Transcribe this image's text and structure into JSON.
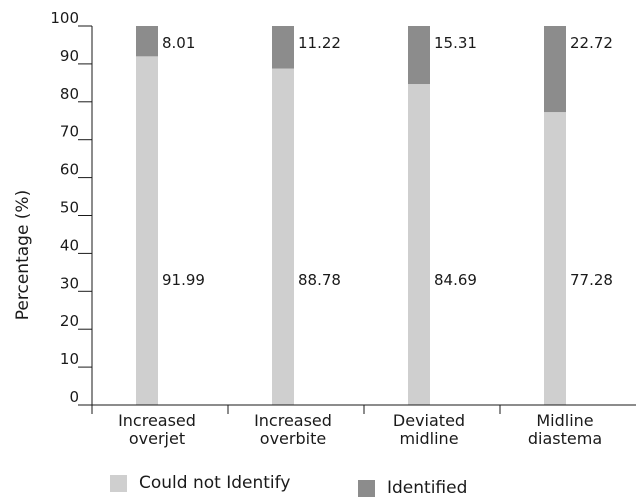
{
  "chart_data": {
    "type": "bar",
    "stacked": true,
    "orientation": "vertical",
    "categories": [
      [
        "Increased",
        "overjet"
      ],
      [
        "Increased",
        "overbite"
      ],
      [
        "Deviated",
        "midline"
      ],
      [
        "Midline",
        "diastema"
      ]
    ],
    "series": [
      {
        "name": "Could not Identify",
        "color": "#cfcfcf",
        "values": [
          91.99,
          88.78,
          84.69,
          77.28
        ]
      },
      {
        "name": "Identified",
        "color": "#8c8c8c",
        "values": [
          8.01,
          11.22,
          15.31,
          22.72
        ]
      }
    ],
    "data_labels": {
      "Could not Identify": [
        "91.99",
        "88.78",
        "84.69",
        "77.28"
      ],
      "Identified": [
        "8.01",
        "11.22",
        "15.31",
        "22.72"
      ]
    },
    "ylabel": "Percentage (%)",
    "xlabel": "",
    "ylim": [
      0,
      100
    ],
    "yticks": [
      0,
      10,
      20,
      30,
      40,
      50,
      60,
      70,
      80,
      90,
      100
    ],
    "grid": false,
    "legend_position": "bottom"
  }
}
